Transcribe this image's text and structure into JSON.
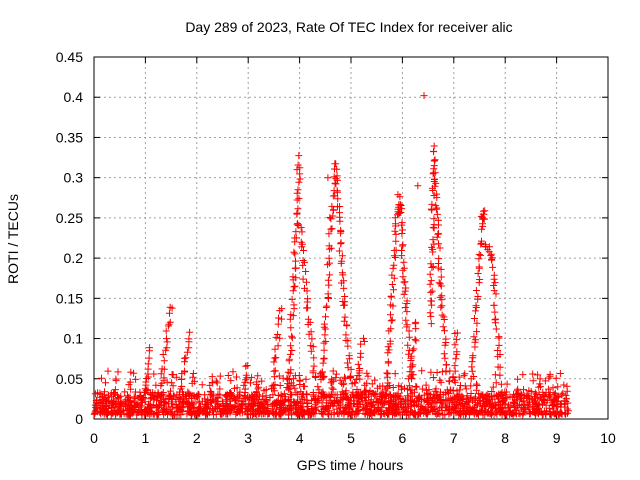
{
  "chart_data": {
    "type": "scatter",
    "title": "Day 289 of 2023, Rate Of TEC Index for receiver alic",
    "xlabel": "GPS time / hours",
    "ylabel": "ROTI / TECUs",
    "xlim": [
      0,
      10
    ],
    "ylim": [
      0,
      0.45
    ],
    "x_ticks": [
      0,
      1,
      2,
      3,
      4,
      5,
      6,
      7,
      8,
      9,
      10
    ],
    "x_tick_labels": [
      "0",
      "1",
      "2",
      "3",
      "4",
      "5",
      "6",
      "7",
      "8",
      "9",
      "10"
    ],
    "y_ticks": [
      0,
      0.05,
      0.1,
      0.15,
      0.2,
      0.25,
      0.3,
      0.35,
      0.4,
      0.45
    ],
    "y_tick_labels": [
      "0",
      "0.05",
      "0.1",
      "0.15",
      "0.2",
      "0.25",
      "0.3",
      "0.35",
      "0.4",
      "0.45"
    ],
    "grid": true,
    "marker": "+",
    "series_color": "#ff0000",
    "data_x_range": [
      0,
      9.25
    ],
    "baseline_band": [
      0.005,
      0.03
    ],
    "peak_tracks": [
      {
        "points": [
          [
            1.0,
            0.03
          ],
          [
            1.1,
            0.09
          ]
        ]
      },
      {
        "points": [
          [
            1.3,
            0.04
          ],
          [
            1.5,
            0.14
          ]
        ]
      },
      {
        "points": [
          [
            1.7,
            0.04
          ],
          [
            1.85,
            0.11
          ]
        ]
      },
      {
        "points": [
          [
            2.9,
            0.02
          ],
          [
            2.98,
            0.07
          ]
        ]
      },
      {
        "points": [
          [
            3.45,
            0.03
          ],
          [
            3.65,
            0.14
          ]
        ]
      },
      {
        "points": [
          [
            3.78,
            0.04
          ],
          [
            3.9,
            0.18
          ],
          [
            4.0,
            0.325
          ]
        ]
      },
      {
        "points": [
          [
            4.0,
            0.24
          ],
          [
            4.15,
            0.14
          ],
          [
            4.3,
            0.05
          ]
        ]
      },
      {
        "points": [
          [
            4.45,
            0.05
          ],
          [
            4.62,
            0.25
          ],
          [
            4.72,
            0.32
          ]
        ]
      },
      {
        "points": [
          [
            4.72,
            0.31
          ],
          [
            4.85,
            0.15
          ],
          [
            5.0,
            0.04
          ]
        ]
      },
      {
        "points": [
          [
            5.05,
            0.03
          ],
          [
            5.25,
            0.1
          ]
        ]
      },
      {
        "points": [
          [
            5.7,
            0.03
          ],
          [
            5.88,
            0.25
          ],
          [
            5.95,
            0.278
          ]
        ]
      },
      {
        "points": [
          [
            5.95,
            0.27
          ],
          [
            6.05,
            0.16
          ],
          [
            6.2,
            0.04
          ]
        ]
      },
      {
        "points": [
          [
            6.1,
            0.03
          ],
          [
            6.28,
            0.12
          ]
        ]
      },
      {
        "points": [
          [
            6.55,
            0.12
          ],
          [
            6.62,
            0.335
          ]
        ]
      },
      {
        "points": [
          [
            6.62,
            0.33
          ],
          [
            6.75,
            0.15
          ],
          [
            6.9,
            0.04
          ]
        ]
      },
      {
        "points": [
          [
            7.0,
            0.03
          ],
          [
            7.05,
            0.11
          ]
        ]
      },
      {
        "points": [
          [
            7.35,
            0.04
          ],
          [
            7.55,
            0.25
          ],
          [
            7.6,
            0.258
          ]
        ]
      },
      {
        "points": [
          [
            7.62,
            0.22
          ],
          [
            7.75,
            0.2
          ],
          [
            7.9,
            0.05
          ]
        ]
      }
    ],
    "outliers": [
      {
        "x": 6.42,
        "y": 0.402
      },
      {
        "x": 6.3,
        "y": 0.29
      },
      {
        "x": 4.55,
        "y": 0.3
      },
      {
        "x": 3.95,
        "y": 0.31
      }
    ]
  }
}
